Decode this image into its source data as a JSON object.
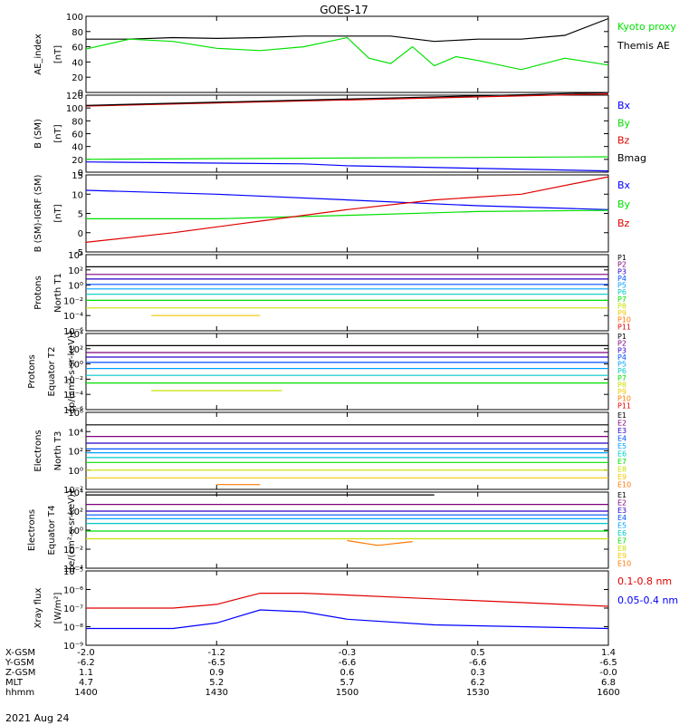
{
  "title": "GOES-17",
  "date": "2021 Aug 24",
  "colors": {
    "black": "#000000",
    "blue": "#0000ff",
    "green": "#00e000",
    "red": "#e00000",
    "P": [
      "#000000",
      "#7f007f",
      "#2a00c8",
      "#0050ff",
      "#00a0ff",
      "#00c8c8",
      "#00e000",
      "#c8e000",
      "#f0c800",
      "#ff7800",
      "#e00000"
    ]
  },
  "panels": [
    {
      "id": "ae",
      "ylabel": [
        "AE_index",
        "[nT]"
      ],
      "ylim": [
        0,
        100
      ],
      "ticks": [
        "0",
        "20",
        "40",
        "60",
        "80",
        "100"
      ],
      "legend": [
        {
          "text": "Kyoto proxy AE",
          "color": "#00e000"
        },
        {
          "text": "Themis AE",
          "color": "#000000"
        }
      ]
    },
    {
      "id": "bsm",
      "ylabel": [
        "B (SM)",
        "[nT]"
      ],
      "ylim": [
        0,
        120
      ],
      "ticks": [
        "0",
        "20",
        "40",
        "60",
        "80",
        "100",
        "120"
      ],
      "legend": [
        {
          "text": "Bx",
          "color": "#0000ff"
        },
        {
          "text": "By",
          "color": "#00e000"
        },
        {
          "text": "Bz",
          "color": "#e00000"
        },
        {
          "text": "Bmag",
          "color": "#000000"
        }
      ]
    },
    {
      "id": "digrf",
      "ylabel": [
        "B (SM)-IGRF (SM)",
        "[nT]"
      ],
      "ylim": [
        -5,
        15
      ],
      "ticks": [
        "-5",
        "0",
        "5",
        "10",
        "15"
      ],
      "legend": [
        {
          "text": "Bx",
          "color": "#0000ff"
        },
        {
          "text": "By",
          "color": "#00e000"
        },
        {
          "text": "Bz",
          "color": "#e00000"
        }
      ]
    },
    {
      "id": "p1",
      "ylabel": [
        "Protons",
        "North T1"
      ],
      "ylim": [
        -6,
        4
      ],
      "ticks": [
        "10⁻⁶",
        "10⁻⁴",
        "10⁻²",
        "10⁰",
        "10²",
        "10⁴"
      ],
      "legend": [
        {
          "text": "P1"
        },
        {
          "text": "P2"
        },
        {
          "text": "P3"
        },
        {
          "text": "P4"
        },
        {
          "text": "P5"
        },
        {
          "text": "P6"
        },
        {
          "text": "P7"
        },
        {
          "text": "P8"
        },
        {
          "text": "P9"
        },
        {
          "text": "P10"
        },
        {
          "text": "P11"
        }
      ]
    },
    {
      "id": "p2",
      "ylabel": [
        "Protons",
        "Equator T2",
        "[p/(cm²-s-sr-keV)]"
      ],
      "ylim": [
        -6,
        4
      ],
      "ticks": [
        "10⁻⁶",
        "10⁻⁴",
        "10⁻²",
        "10⁰",
        "10²",
        "10⁴"
      ],
      "legend": [
        {
          "text": "P1"
        },
        {
          "text": "P2"
        },
        {
          "text": "P3"
        },
        {
          "text": "P4"
        },
        {
          "text": "P5"
        },
        {
          "text": "P6"
        },
        {
          "text": "P7"
        },
        {
          "text": "P8"
        },
        {
          "text": "P9"
        },
        {
          "text": "P10"
        },
        {
          "text": "P11"
        }
      ]
    },
    {
      "id": "e1",
      "ylabel": [
        "Electrons",
        "North T3"
      ],
      "ylim": [
        -2,
        6
      ],
      "ticks": [
        "10⁻²",
        "10⁰",
        "10²",
        "10⁴",
        "10⁶"
      ],
      "legend": [
        {
          "text": "E1"
        },
        {
          "text": "E2"
        },
        {
          "text": "E3"
        },
        {
          "text": "E4"
        },
        {
          "text": "E5"
        },
        {
          "text": "E6"
        },
        {
          "text": "E7"
        },
        {
          "text": "E8"
        },
        {
          "text": "E9"
        },
        {
          "text": "E10"
        }
      ]
    },
    {
      "id": "e2",
      "ylabel": [
        "Electrons",
        "Equator T4",
        "[e/(cm²-s-sr-keV)]"
      ],
      "ylim": [
        -4,
        4
      ],
      "ticks": [
        "10⁻⁴",
        "10⁻²",
        "10⁰",
        "10²",
        "10⁴"
      ],
      "legend": [
        {
          "text": "E1"
        },
        {
          "text": "E2"
        },
        {
          "text": "E3"
        },
        {
          "text": "E4"
        },
        {
          "text": "E5"
        },
        {
          "text": "E6"
        },
        {
          "text": "E7"
        },
        {
          "text": "E8"
        },
        {
          "text": "E9"
        },
        {
          "text": "E10"
        }
      ]
    },
    {
      "id": "xray",
      "ylabel": [
        "Xray flux",
        "[W/m²]"
      ],
      "ylim": [
        -9,
        -5
      ],
      "ticks": [
        "10⁻⁹",
        "10⁻⁸",
        "10⁻⁷",
        "10⁻⁶",
        "10⁻⁵"
      ],
      "legend": [
        {
          "text": "0.1-0.8 nm",
          "color": "#e00000"
        },
        {
          "text": "0.05-0.4 nm",
          "color": "#0000ff"
        }
      ]
    }
  ],
  "xaxis": {
    "rows": [
      {
        "label": "X-GSM",
        "values": [
          "-2.0",
          "-1.2",
          "-0.3",
          "0.5",
          "1.4"
        ]
      },
      {
        "label": "Y-GSM",
        "values": [
          "-6.2",
          "-6.5",
          "-6.6",
          "-6.6",
          "-6.5"
        ]
      },
      {
        "label": "Z-GSM",
        "values": [
          "1.1",
          "0.9",
          "0.6",
          "0.3",
          "-0.0"
        ]
      },
      {
        "label": "MLT",
        "values": [
          "4.7",
          "5.2",
          "5.7",
          "6.2",
          "6.8"
        ]
      },
      {
        "label": "hhmm",
        "values": [
          "1400",
          "1430",
          "1500",
          "1530",
          "1600"
        ]
      }
    ]
  },
  "chart_data": {
    "type": "line",
    "x_range": [
      "1400",
      "1600"
    ],
    "x_ticks": [
      "1400",
      "1430",
      "1500",
      "1530",
      "1600"
    ],
    "panels": [
      {
        "id": "ae",
        "series": [
          {
            "name": "Themis AE",
            "x": [
              1400,
              1410,
              1420,
              1430,
              1440,
              1450,
              1500,
              1510,
              1520,
              1530,
              1540,
              1550,
              1600
            ],
            "y": [
              70,
              70,
              72,
              71,
              72,
              74,
              74,
              74,
              67,
              70,
              70,
              75,
              97
            ]
          },
          {
            "name": "Kyoto proxy AE",
            "x": [
              1400,
              1410,
              1420,
              1430,
              1440,
              1450,
              1500,
              1505,
              1510,
              1515,
              1520,
              1525,
              1530,
              1540,
              1550,
              1600
            ],
            "y": [
              57,
              70,
              67,
              58,
              55,
              60,
              72,
              45,
              38,
              60,
              35,
              47,
              42,
              30,
              45,
              36
            ]
          }
        ]
      },
      {
        "id": "bsm",
        "series": [
          {
            "name": "Bz",
            "x": [
              1400,
              1600
            ],
            "y": [
              103,
              122
            ]
          },
          {
            "name": "Bmag",
            "x": [
              1400,
              1600
            ],
            "y": [
              104,
              124
            ]
          },
          {
            "name": "By",
            "x": [
              1400,
              1500,
              1600
            ],
            "y": [
              20,
              22,
              24
            ]
          },
          {
            "name": "Bx",
            "x": [
              1400,
              1450,
              1500,
              1600
            ],
            "y": [
              16,
              13,
              10,
              2
            ]
          }
        ]
      },
      {
        "id": "digrf",
        "series": [
          {
            "name": "Bx",
            "x": [
              1400,
              1430,
              1500,
              1530,
              1600
            ],
            "y": [
              11,
              10,
              8.5,
              7,
              6
            ]
          },
          {
            "name": "By",
            "x": [
              1400,
              1430,
              1500,
              1530,
              1600
            ],
            "y": [
              3.6,
              3.6,
              4.5,
              5.5,
              5.8
            ]
          },
          {
            "name": "Bz",
            "x": [
              1400,
              1420,
              1440,
              1500,
              1520,
              1540,
              1600
            ],
            "y": [
              -2.5,
              0,
              3,
              6,
              8.5,
              10,
              14.5
            ]
          }
        ]
      },
      {
        "id": "p1",
        "series": [
          {
            "name": "P1",
            "x": [
              1400,
              1600
            ],
            "y": [
              2.4,
              2.4
            ]
          },
          {
            "name": "P2",
            "x": [
              1400,
              1600
            ],
            "y": [
              1.4,
              1.4
            ]
          },
          {
            "name": "P3",
            "x": [
              1400,
              1600
            ],
            "y": [
              0.8,
              0.8
            ]
          },
          {
            "name": "P4",
            "x": [
              1400,
              1600
            ],
            "y": [
              0.1,
              0.1
            ]
          },
          {
            "name": "P5",
            "x": [
              1400,
              1600
            ],
            "y": [
              -0.5,
              -0.5
            ]
          },
          {
            "name": "P6",
            "x": [
              1400,
              1600
            ],
            "y": [
              -1.2,
              -1.2
            ]
          },
          {
            "name": "P7",
            "x": [
              1400,
              1600
            ],
            "y": [
              -2.0,
              -2.0
            ]
          },
          {
            "name": "P8",
            "x": [
              1400,
              1600
            ],
            "y": [
              -3.0,
              -3.0
            ]
          },
          {
            "name": "P9",
            "x": [
              1415,
              1440
            ],
            "y": [
              -4.0,
              -4.0
            ]
          }
        ]
      },
      {
        "id": "p2",
        "series": [
          {
            "name": "P1",
            "x": [
              1400,
              1600
            ],
            "y": [
              2.4,
              2.4
            ]
          },
          {
            "name": "P2",
            "x": [
              1400,
              1600
            ],
            "y": [
              1.5,
              1.5
            ]
          },
          {
            "name": "P3",
            "x": [
              1400,
              1600
            ],
            "y": [
              0.9,
              0.9
            ]
          },
          {
            "name": "P4",
            "x": [
              1400,
              1600
            ],
            "y": [
              0.2,
              0.2
            ]
          },
          {
            "name": "P5",
            "x": [
              1400,
              1600
            ],
            "y": [
              -0.6,
              -0.6
            ]
          },
          {
            "name": "P6",
            "x": [
              1400,
              1600
            ],
            "y": [
              -1.5,
              -1.5
            ]
          },
          {
            "name": "P7",
            "x": [
              1400,
              1600
            ],
            "y": [
              -2.5,
              -2.5
            ]
          },
          {
            "name": "P8",
            "x": [
              1415,
              1445
            ],
            "y": [
              -3.5,
              -3.5
            ]
          }
        ]
      },
      {
        "id": "e1",
        "series": [
          {
            "name": "E1",
            "x": [
              1400,
              1600
            ],
            "y": [
              4.7,
              4.7
            ]
          },
          {
            "name": "E2",
            "x": [
              1400,
              1600
            ],
            "y": [
              3.5,
              3.5
            ]
          },
          {
            "name": "E3",
            "x": [
              1400,
              1600
            ],
            "y": [
              2.8,
              2.8
            ]
          },
          {
            "name": "E4",
            "x": [
              1400,
              1600
            ],
            "y": [
              2.2,
              2.2
            ]
          },
          {
            "name": "E5",
            "x": [
              1400,
              1600
            ],
            "y": [
              1.8,
              1.8
            ]
          },
          {
            "name": "E6",
            "x": [
              1400,
              1600
            ],
            "y": [
              1.3,
              1.3
            ]
          },
          {
            "name": "E7",
            "x": [
              1400,
              1600
            ],
            "y": [
              0.8,
              0.8
            ]
          },
          {
            "name": "E8",
            "x": [
              1400,
              1600
            ],
            "y": [
              0.0,
              0.0
            ]
          },
          {
            "name": "E9",
            "x": [
              1400,
              1600
            ],
            "y": [
              -0.8,
              -0.8
            ]
          },
          {
            "name": "E10",
            "x": [
              1430,
              1440
            ],
            "y": [
              -1.5,
              -1.5
            ]
          }
        ]
      },
      {
        "id": "e2",
        "series": [
          {
            "name": "E1",
            "x": [
              1400,
              1520
            ],
            "y": [
              3.7,
              3.7
            ]
          },
          {
            "name": "E2",
            "x": [
              1400,
              1600
            ],
            "y": [
              2.7,
              2.7
            ]
          },
          {
            "name": "E3",
            "x": [
              1400,
              1600
            ],
            "y": [
              2.0,
              2.0
            ]
          },
          {
            "name": "E4",
            "x": [
              1400,
              1600
            ],
            "y": [
              1.6,
              1.6
            ]
          },
          {
            "name": "E5",
            "x": [
              1400,
              1600
            ],
            "y": [
              1.2,
              1.2
            ]
          },
          {
            "name": "E6",
            "x": [
              1400,
              1600
            ],
            "y": [
              0.7,
              0.7
            ]
          },
          {
            "name": "E7",
            "x": [
              1400,
              1600
            ],
            "y": [
              -0.1,
              -0.1
            ]
          },
          {
            "name": "E8",
            "x": [
              1400,
              1600
            ],
            "y": [
              -0.9,
              -0.9
            ]
          },
          {
            "name": "E10",
            "x": [
              1500,
              1507,
              1515
            ],
            "y": [
              -1.1,
              -1.6,
              -1.2
            ]
          }
        ]
      },
      {
        "id": "xray",
        "series": [
          {
            "name": "0.1-0.8 nm",
            "x": [
              1400,
              1420,
              1430,
              1440,
              1450,
              1500,
              1520,
              1540,
              1600
            ],
            "y": [
              -7.0,
              -7.0,
              -6.8,
              -6.2,
              -6.2,
              -6.3,
              -6.5,
              -6.7,
              -6.9
            ]
          },
          {
            "name": "0.05-0.4 nm",
            "x": [
              1400,
              1420,
              1430,
              1440,
              1450,
              1500,
              1520,
              1540,
              1600
            ],
            "y": [
              -8.1,
              -8.1,
              -7.8,
              -7.1,
              -7.2,
              -7.6,
              -7.9,
              -8.0,
              -8.1
            ]
          }
        ]
      }
    ]
  }
}
